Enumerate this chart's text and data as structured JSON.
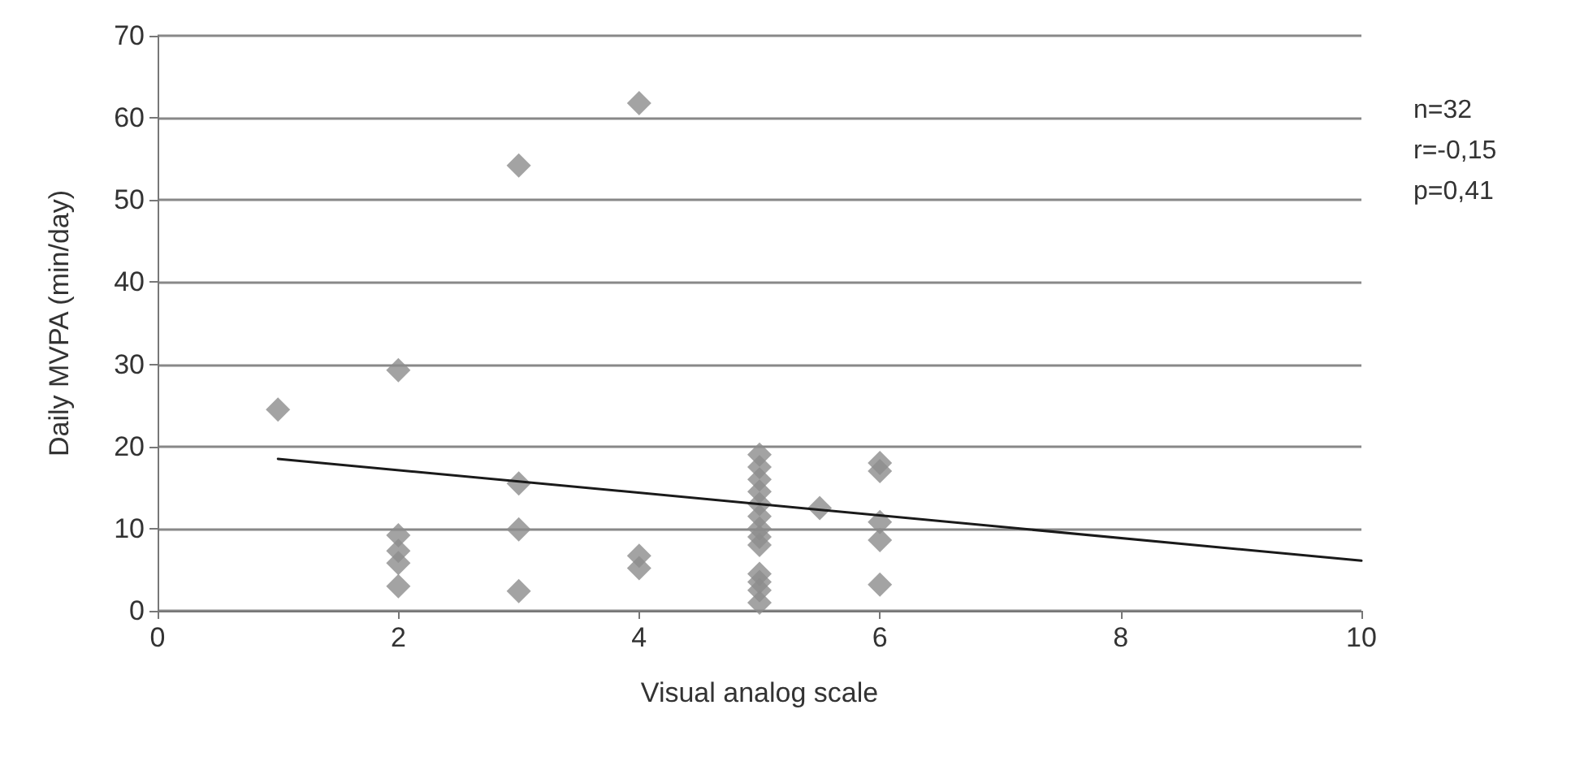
{
  "chart_data": {
    "type": "scatter",
    "xlabel": "Visual analog scale",
    "ylabel": "Daily MVPA (min/day)",
    "annotations": [
      "n=32",
      "r=-0,15",
      "p=0,41"
    ],
    "series": [
      {
        "color": "#8c8c8c",
        "marker": "diamond",
        "x": [
          1,
          2,
          2,
          2,
          2,
          2,
          3,
          3,
          3,
          3,
          4,
          4,
          4,
          5,
          5,
          5,
          5,
          5,
          5,
          5,
          5,
          5,
          5,
          5,
          5,
          5,
          5.5,
          6,
          6,
          6,
          6,
          6
        ],
        "values": [
          24.5,
          29.3,
          9.2,
          7.3,
          5.8,
          3.0,
          54.2,
          15.5,
          9.9,
          2.4,
          61.8,
          6.7,
          5.2,
          19.0,
          17.5,
          16.0,
          14.5,
          13.0,
          11.5,
          10.0,
          9.0,
          8.0,
          4.5,
          3.5,
          2.5,
          1.0,
          12.5,
          18.0,
          17.0,
          10.8,
          8.6,
          3.2
        ]
      },
      {
        "type": "line",
        "color": "#1a1a1a",
        "marker": "none",
        "x": [
          1,
          10
        ],
        "values": [
          18.5,
          6.1
        ]
      }
    ],
    "xlim": [
      0,
      10
    ],
    "xticks": [
      0,
      2,
      4,
      6,
      8,
      10
    ],
    "ylim": [
      0,
      70
    ],
    "yticks": [
      0,
      10,
      20,
      30,
      40,
      50,
      60,
      70
    ],
    "grid": "y"
  }
}
